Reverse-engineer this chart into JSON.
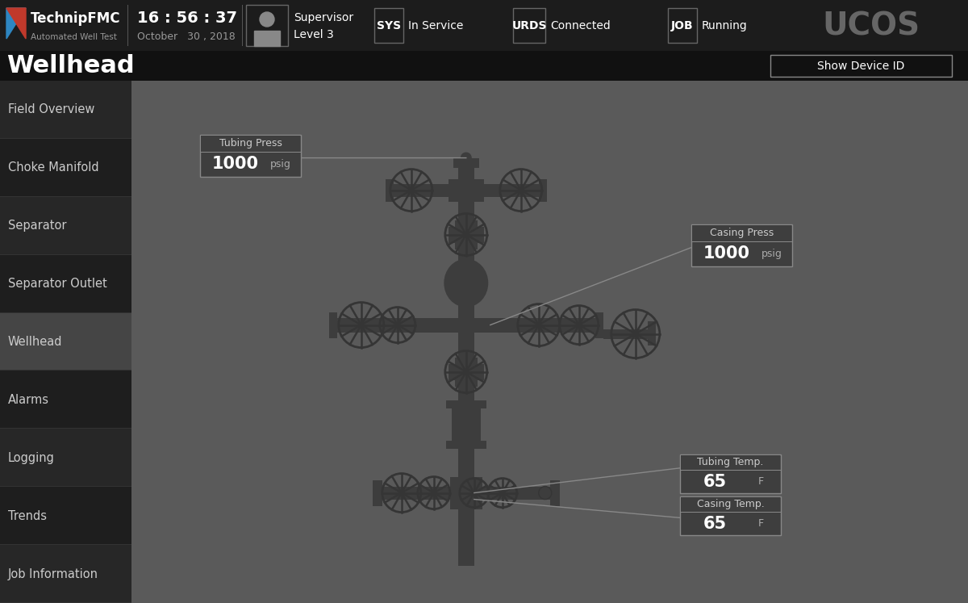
{
  "bg_main": "#1a1a1a",
  "bg_header": "#1c1c1c",
  "bg_content": "#5a5a5a",
  "fg_white": "#ffffff",
  "fg_light": "#cccccc",
  "fg_dim": "#999999",
  "border_color": "#777777",
  "line_color": "#888888",
  "title_text": "Wellhead",
  "time_text": "16 : 56 : 37",
  "date_text": "October   30 , 2018",
  "supervisor_text": "Supervisor",
  "level_text": "Level 3",
  "sys_label": "SYS",
  "sys_value": "In Service",
  "urds_label": "URDS",
  "urds_value": "Connected",
  "job_label": "JOB",
  "job_value": "Running",
  "ucos_text": "UCOS",
  "logo_text": "TechnipFMC",
  "auto_text": "Automated Well Test",
  "show_device_btn": "Show Device ID",
  "menu_items": [
    "Field Overview",
    "Choke Manifold",
    "Separator",
    "Separator Outlet",
    "Wellhead",
    "Alarms",
    "Logging",
    "Trends",
    "Job Information"
  ],
  "active_menu": "Wellhead",
  "tubing_press_label": "Tubing Press",
  "tubing_press_value": "1000",
  "tubing_press_unit": "psig",
  "casing_press_label": "Casing Press",
  "casing_press_value": "1000",
  "casing_press_unit": "psig",
  "tubing_temp_label": "Tubing Temp.",
  "tubing_temp_value": "65",
  "tubing_temp_unit": "F",
  "casing_temp_label": "Casing Temp.",
  "casing_temp_value": "65",
  "casing_temp_unit": "F"
}
